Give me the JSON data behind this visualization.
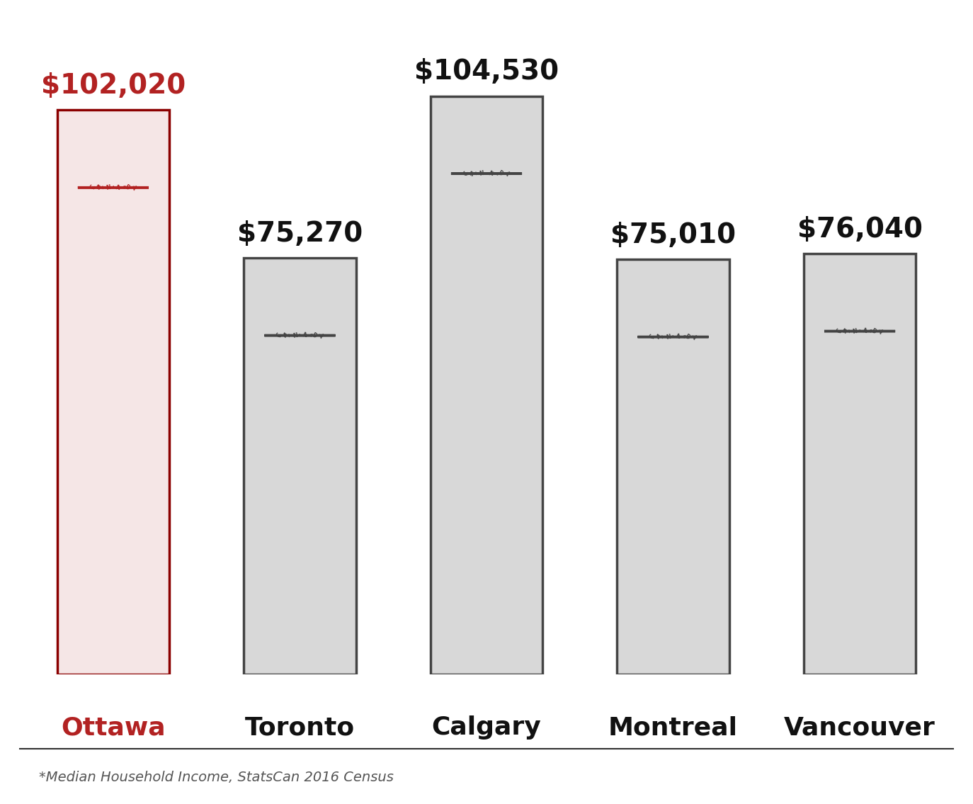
{
  "categories": [
    "Ottawa",
    "Toronto",
    "Calgary",
    "Montreal",
    "Vancouver"
  ],
  "values": [
    102020,
    75270,
    104530,
    75010,
    76040
  ],
  "value_labels": [
    "$102,020",
    "$75,270",
    "$104,530",
    "$75,010",
    "$76,040"
  ],
  "bar_fill_colors": [
    "#f5e6e6",
    "#d8d8d8",
    "#d8d8d8",
    "#d8d8d8",
    "#d8d8d8"
  ],
  "bar_edge_colors": [
    "#8b0000",
    "#444444",
    "#444444",
    "#444444",
    "#444444"
  ],
  "label_colors": [
    "#b22222",
    "#111111",
    "#111111",
    "#111111",
    "#111111"
  ],
  "value_label_colors": [
    "#b22222",
    "#111111",
    "#111111",
    "#111111",
    "#111111"
  ],
  "coin_outer_colors": [
    "#b22222",
    "#444444",
    "#444444",
    "#444444",
    "#444444"
  ],
  "coin_fill_colors": [
    "#f5e6e6",
    "#d8d8d8",
    "#d8d8d8",
    "#d8d8d8",
    "#d8d8d8"
  ],
  "background_color": "#ffffff",
  "footer_text": "*Median Household Income, StatsCan 2016 Census",
  "ylim": [
    0,
    120000
  ],
  "bar_width": 0.6,
  "figsize": [
    13.74,
    11.35
  ],
  "dpi": 100
}
